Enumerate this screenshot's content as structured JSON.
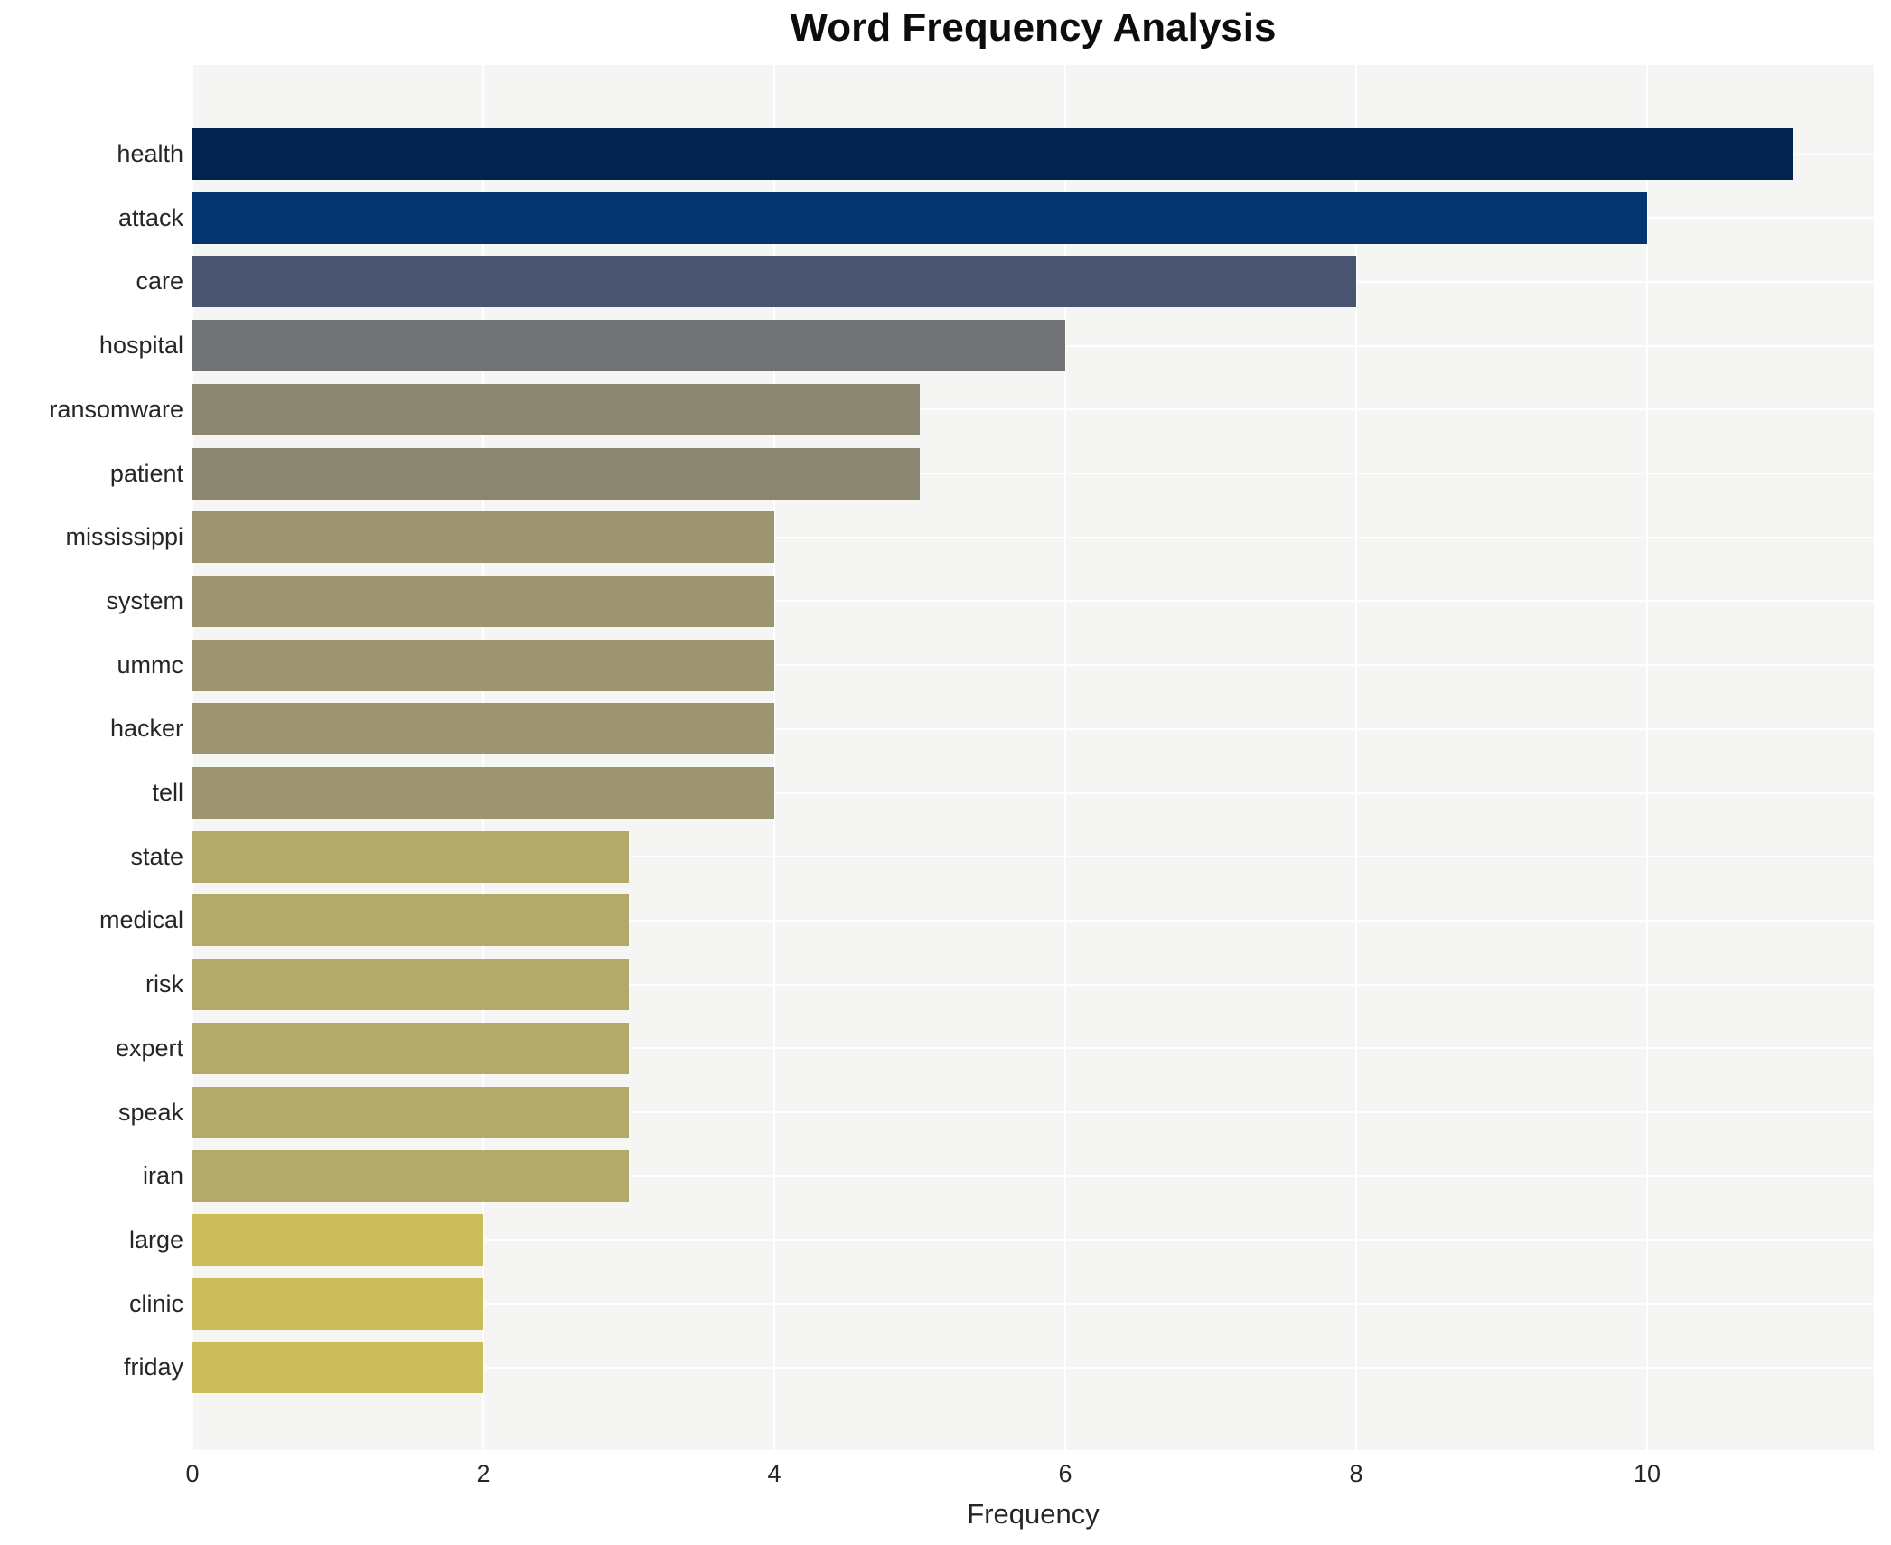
{
  "title": "Word Frequency Analysis",
  "chart_data": {
    "type": "bar",
    "orientation": "horizontal",
    "title": "Word Frequency Analysis",
    "xlabel": "Frequency",
    "ylabel": "",
    "categories": [
      "health",
      "attack",
      "care",
      "hospital",
      "ransomware",
      "patient",
      "mississippi",
      "system",
      "ummc",
      "hacker",
      "tell",
      "state",
      "medical",
      "risk",
      "expert",
      "speak",
      "iran",
      "large",
      "clinic",
      "friday"
    ],
    "values": [
      11,
      10,
      8,
      6,
      5,
      5,
      4,
      4,
      4,
      4,
      4,
      3,
      3,
      3,
      3,
      3,
      3,
      2,
      2,
      2
    ],
    "bar_colors": [
      "#02234e",
      "#04356f",
      "#4a5470",
      "#717275",
      "#8a8670",
      "#8a8670",
      "#9d9572",
      "#9d9572",
      "#9d9572",
      "#9d9572",
      "#9d9572",
      "#b3a96a",
      "#b3a96a",
      "#b3a96a",
      "#b3a96a",
      "#b3a96a",
      "#b3a96a",
      "#cdbc5a",
      "#cdbc5a",
      "#cdbc5a"
    ],
    "xlim": [
      0,
      11.56
    ],
    "x_ticks": [
      0,
      2,
      4,
      6,
      8,
      10
    ],
    "grid": "white gridlines on light gray panel, vertical at x ticks and horizontal at each category row",
    "legend": "none",
    "plot_bg": "#f5f5f4",
    "fig_bg": "#ffffff",
    "colormap": "cividis (value-mapped: high=dark navy, low=gold)"
  }
}
